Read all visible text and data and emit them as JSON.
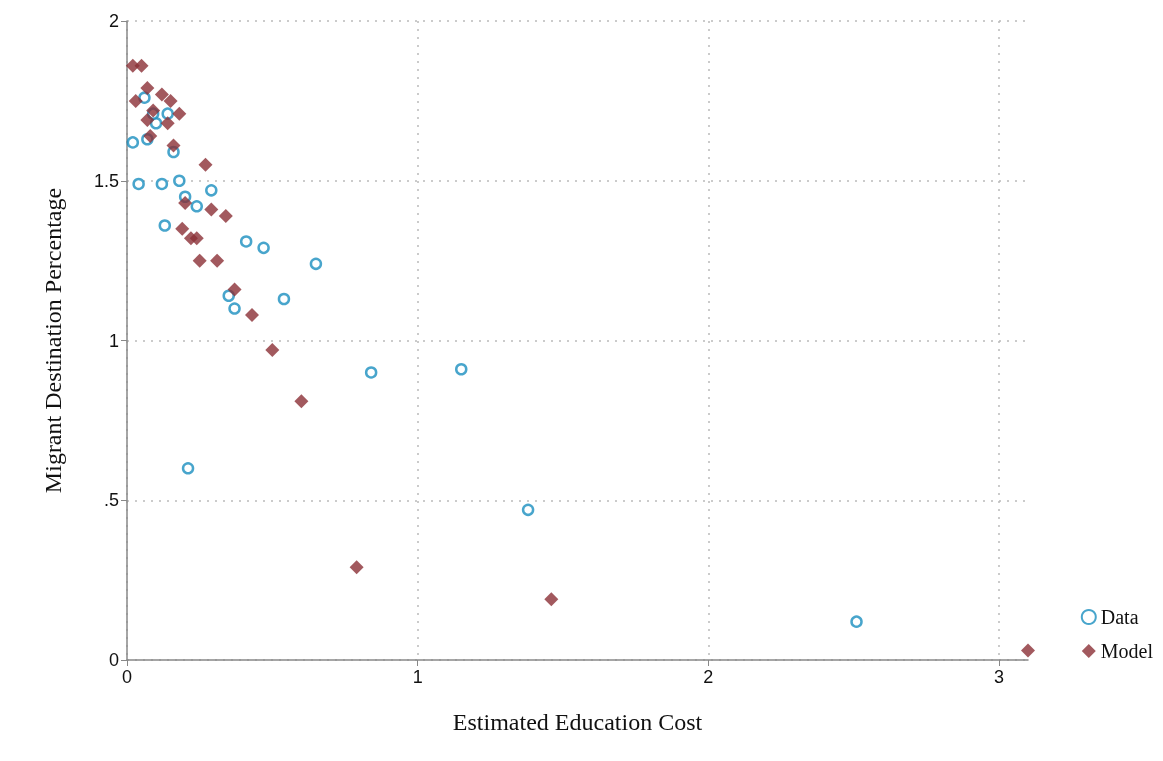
{
  "chart_data": {
    "type": "scatter",
    "xlabel": "Estimated Education Cost",
    "ylabel": "Migrant Destination Percentage",
    "xlim": [
      0,
      3.1
    ],
    "xticks": [
      0,
      1,
      2,
      3
    ],
    "ylim": [
      0,
      2
    ],
    "yticks": [
      0,
      {
        "value": 0.5,
        "label": ".5"
      },
      1,
      1.5,
      2
    ],
    "grid": true,
    "legend": "right",
    "series": [
      {
        "name": "Data",
        "color": "#1a8fbf",
        "marker": "circle",
        "x": [
          0.02,
          0.04,
          0.06,
          0.07,
          0.1,
          0.09,
          0.14,
          0.16,
          0.12,
          0.18,
          0.2,
          0.29,
          0.24,
          0.13,
          0.41,
          0.47,
          0.65,
          0.35,
          0.54,
          0.37,
          0.21,
          0.84,
          1.15,
          1.38,
          2.51
        ],
        "values": [
          1.62,
          1.49,
          1.76,
          1.63,
          1.68,
          1.71,
          1.71,
          1.59,
          1.49,
          1.5,
          1.45,
          1.47,
          1.42,
          1.36,
          1.31,
          1.29,
          1.24,
          1.14,
          1.13,
          1.1,
          0.6,
          0.9,
          0.91,
          0.47,
          0.12
        ]
      },
      {
        "name": "Model",
        "color": "#8b3036",
        "marker": "diamond",
        "x": [
          0.02,
          0.05,
          0.07,
          0.03,
          0.12,
          0.15,
          0.09,
          0.07,
          0.08,
          0.14,
          0.18,
          0.16,
          0.27,
          0.2,
          0.29,
          0.34,
          0.19,
          0.22,
          0.24,
          0.25,
          0.31,
          0.37,
          0.43,
          0.5,
          0.6,
          0.79,
          1.46,
          3.1
        ],
        "values": [
          1.86,
          1.86,
          1.79,
          1.75,
          1.77,
          1.75,
          1.72,
          1.69,
          1.64,
          1.68,
          1.71,
          1.61,
          1.55,
          1.43,
          1.41,
          1.39,
          1.35,
          1.32,
          1.32,
          1.25,
          1.25,
          1.16,
          1.08,
          0.97,
          0.81,
          0.29,
          0.19,
          0.03
        ]
      }
    ]
  }
}
